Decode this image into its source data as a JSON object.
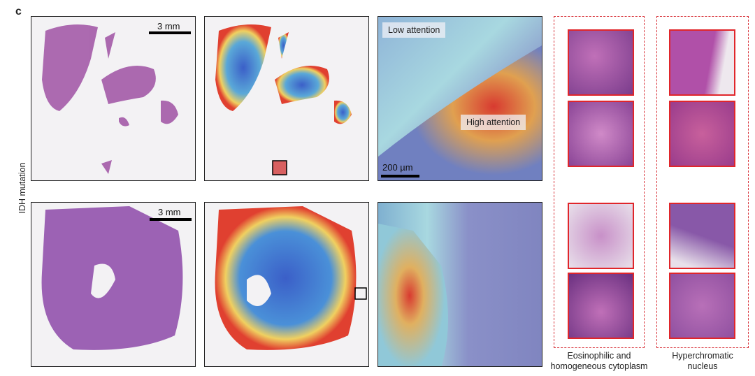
{
  "panel_letter": "c",
  "row_label": "IDH mutation",
  "scale_bars": {
    "wsi": "3 mm",
    "zoom": "200 µm"
  },
  "attention_labels": {
    "low": "Low attention",
    "high": "High attention"
  },
  "feature_groups": [
    {
      "label_line1": "Eosinophilic and",
      "label_line2": "homogeneous cytoplasm"
    },
    {
      "label_line1": "Hyperchromatic",
      "label_line2": "nucleus"
    }
  ],
  "colors": {
    "tile_border": "#e0262b",
    "he_stain": "#a45ba8",
    "dash": "#d8333a"
  }
}
